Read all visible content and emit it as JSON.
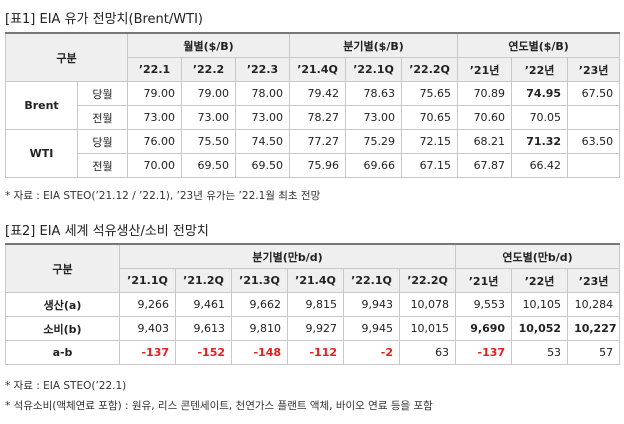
{
  "table1": {
    "title": "[표1] EIA 유가 전망치(Brent/WTI)",
    "corner": "구분",
    "groups": [
      "월별($/B)",
      "분기별($/B)",
      "연도별($/B)"
    ],
    "periods": [
      "’22.1",
      "’22.2",
      "’22.3",
      "’21.4Q",
      "’22.1Q",
      "’22.2Q",
      "’21년",
      "’22년",
      "’23년"
    ],
    "rows": [
      {
        "name": "Brent",
        "lines": [
          {
            "label": "당월",
            "values": [
              "79.00",
              "79.00",
              "78.00",
              "79.42",
              "78.63",
              "75.65",
              "70.89",
              "74.95",
              "67.50"
            ]
          },
          {
            "label": "전월",
            "values": [
              "73.00",
              "73.00",
              "73.00",
              "78.27",
              "73.00",
              "70.65",
              "70.60",
              "70.05"
            ]
          }
        ]
      },
      {
        "name": "WTI",
        "lines": [
          {
            "label": "당월",
            "values": [
              "76.00",
              "75.50",
              "74.50",
              "77.27",
              "75.29",
              "72.15",
              "68.21",
              "71.32",
              "63.50"
            ]
          },
          {
            "label": "전월",
            "values": [
              "70.00",
              "69.50",
              "69.50",
              "75.96",
              "69.66",
              "67.15",
              "67.87",
              "66.42"
            ]
          }
        ]
      }
    ],
    "note": "* 자료 : EIA STEO(’21.12 / ’22.1), ’23년 유가는 ’22.1월 최초 전망"
  },
  "table2": {
    "title": "[표2] EIA 세계 석유생산/소비 전망치",
    "corner": "구분",
    "groups": [
      "분기별(만b/d)",
      "연도별(만b/d)"
    ],
    "periods": [
      "’21.1Q",
      "’21.2Q",
      "’21.3Q",
      "’21.4Q",
      "’22.1Q",
      "’22.2Q",
      "’21년",
      "’22년",
      "’23년"
    ],
    "rows": [
      {
        "label": "생산(a)",
        "values": [
          "9,266",
          "9,461",
          "9,662",
          "9,815",
          "9,943",
          "10,078",
          "9,553",
          "10,105",
          "10,284"
        ]
      },
      {
        "label": "소비(b)",
        "values": [
          "9,403",
          "9,613",
          "9,810",
          "9,927",
          "9,945",
          "10,015",
          "9,690",
          "10,052",
          "10,227"
        ]
      },
      {
        "label": "a-b",
        "values": [
          "-137",
          "-152",
          "-148",
          "-112",
          "-2",
          "63",
          "-137",
          "53",
          "57"
        ]
      }
    ],
    "notes": [
      "* 자료 : EIA STEO(’22.1)",
      "* 석유소비(액체연료 포함) : 원유, 리스 콘텐세이트, 천연가스 플랜트 액체, 바이오 연료 등을 포함"
    ]
  }
}
